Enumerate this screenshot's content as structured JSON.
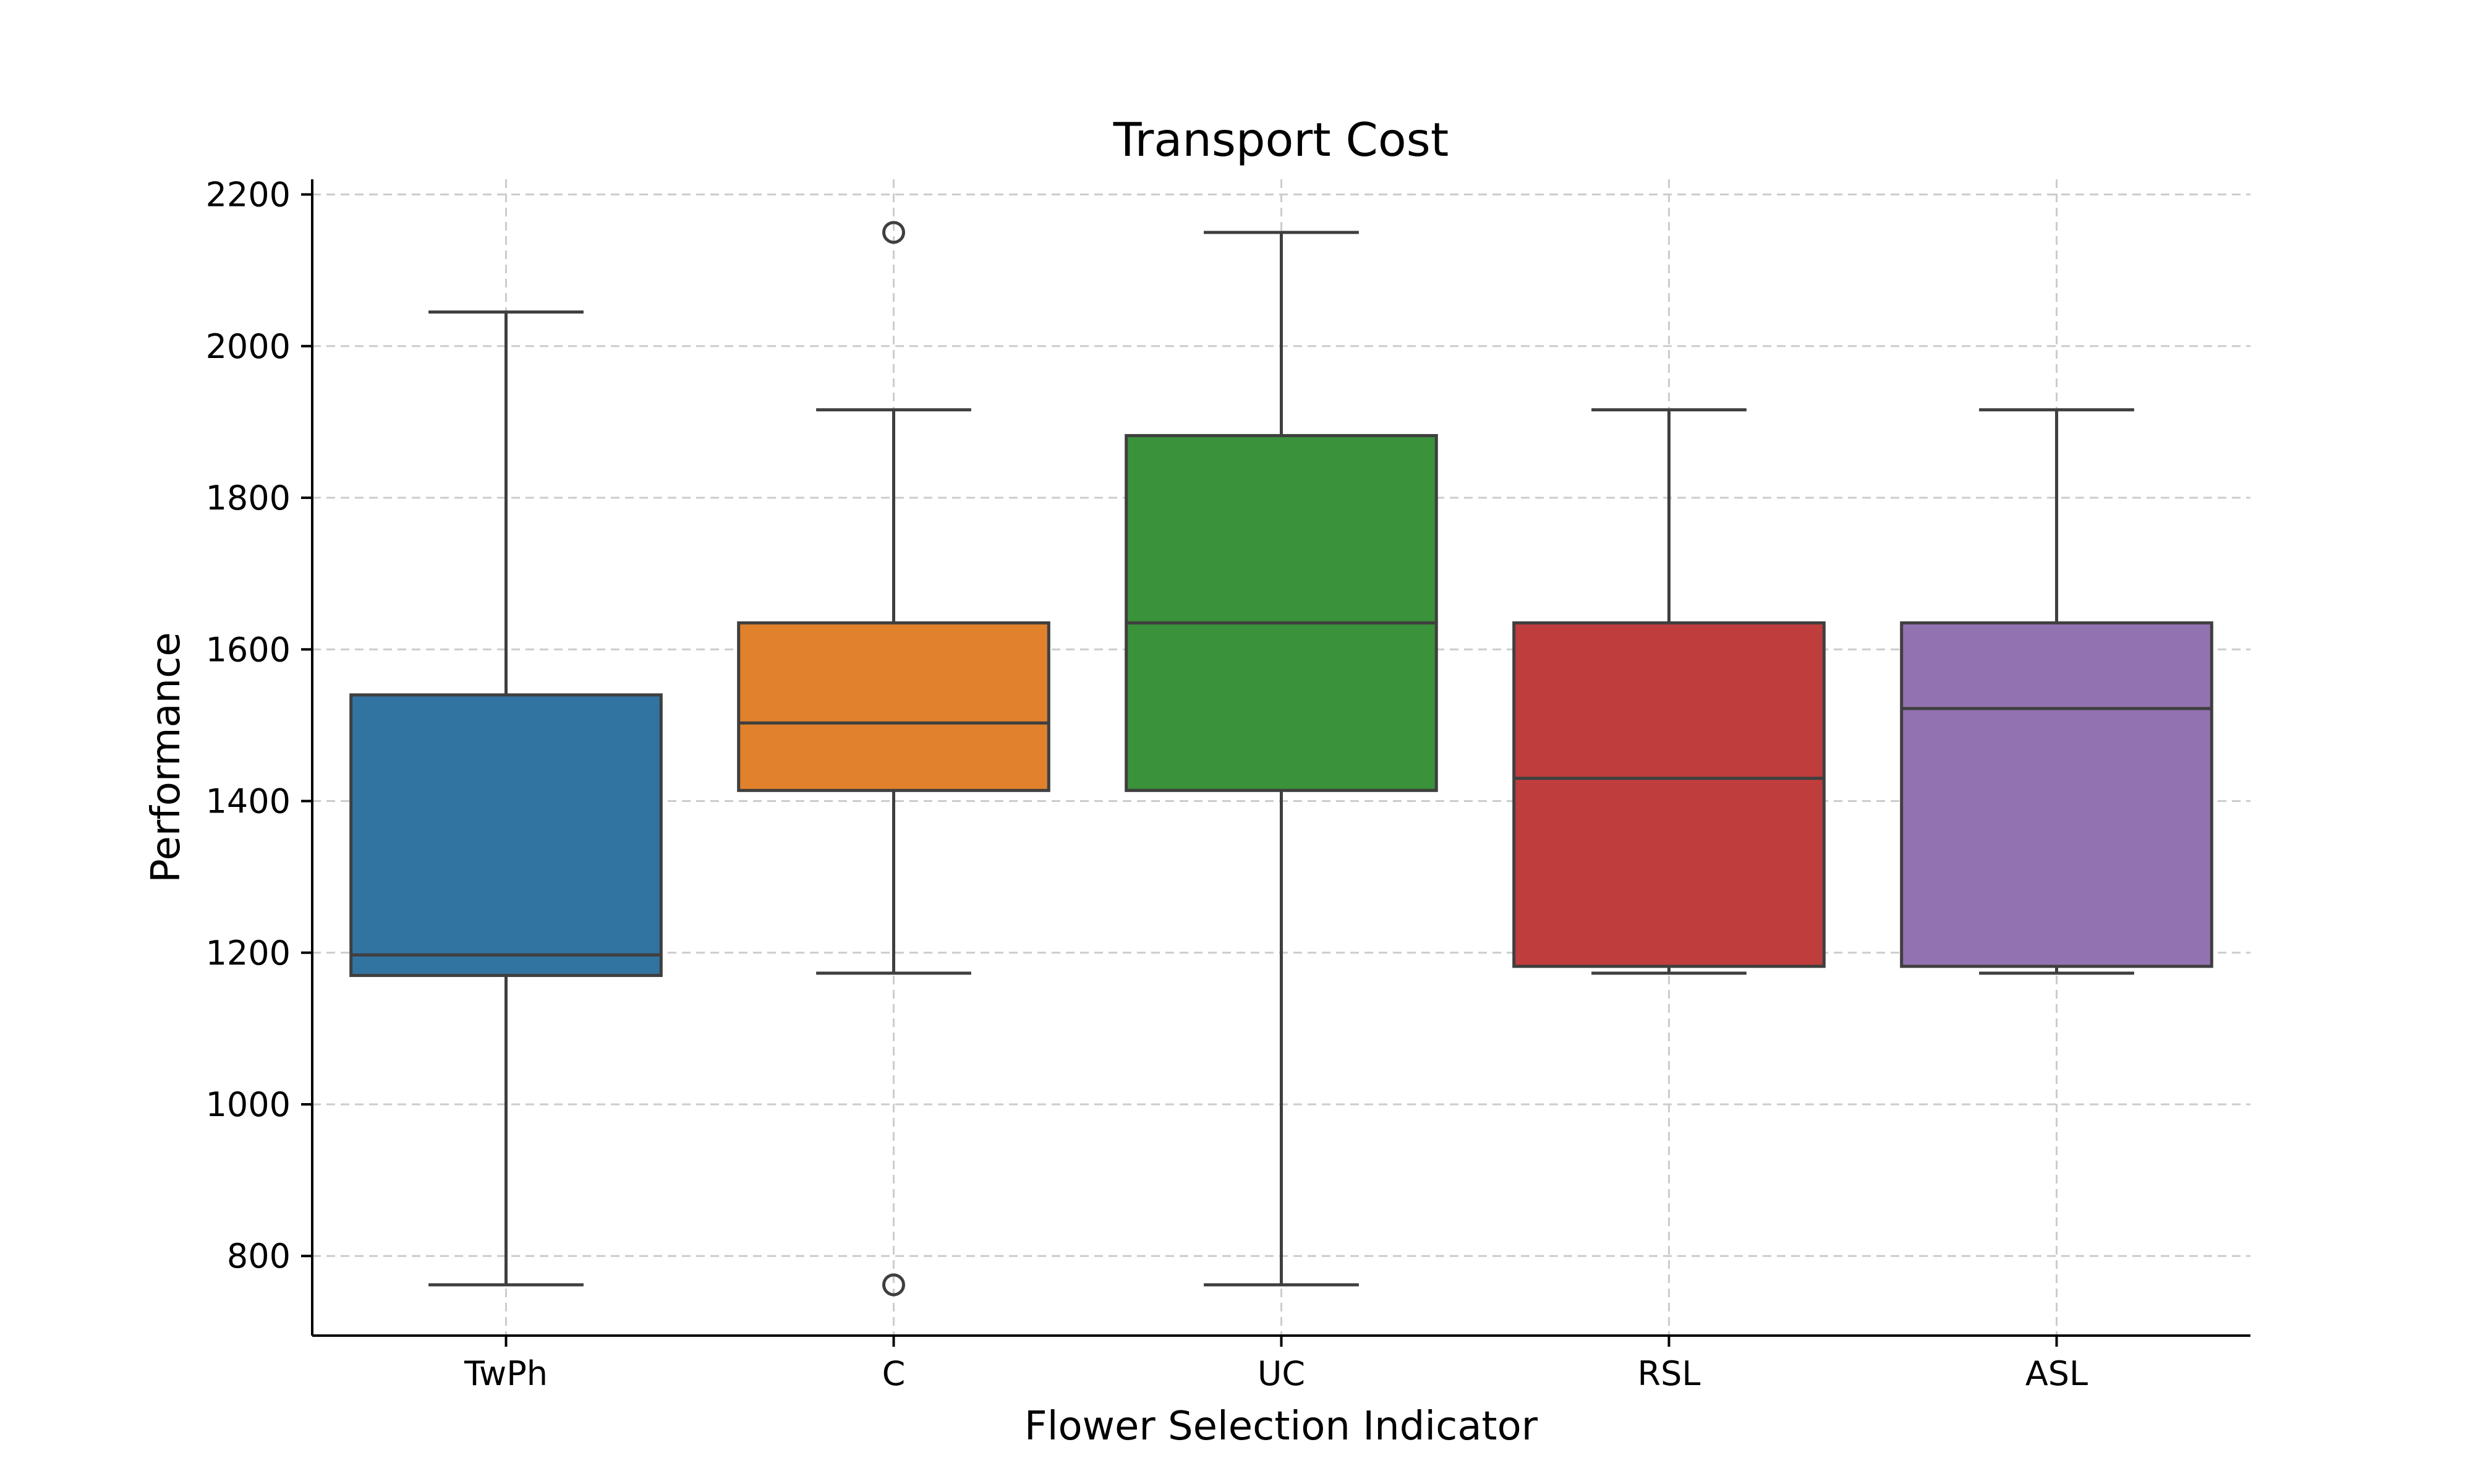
{
  "chart_data": {
    "type": "box",
    "title": "Transport Cost",
    "xlabel": "Flower Selection Indicator",
    "ylabel": "Performance",
    "ylim": [
      695,
      2220
    ],
    "yticks": [
      800,
      1000,
      1200,
      1400,
      1600,
      1800,
      2000,
      2200
    ],
    "grid": true,
    "categories": [
      "TwPh",
      "C",
      "UC",
      "RSL",
      "ASL"
    ],
    "boxes": [
      {
        "category": "TwPh",
        "whisker_low": 762,
        "q1": 1170,
        "median": 1197,
        "q3": 1540,
        "whisker_high": 2045,
        "outliers": [],
        "color": "#3274a1"
      },
      {
        "category": "C",
        "whisker_low": 1173,
        "q1": 1414,
        "median": 1503,
        "q3": 1635,
        "whisker_high": 1916,
        "outliers": [
          2150,
          762
        ],
        "color": "#e1812c"
      },
      {
        "category": "UC",
        "whisker_low": 762,
        "q1": 1414,
        "median": 1635,
        "q3": 1882,
        "whisker_high": 2150,
        "outliers": [],
        "color": "#3a923a"
      },
      {
        "category": "RSL",
        "whisker_low": 1173,
        "q1": 1182,
        "median": 1430,
        "q3": 1635,
        "whisker_high": 1916,
        "outliers": [],
        "color": "#c03d3e"
      },
      {
        "category": "ASL",
        "whisker_low": 1173,
        "q1": 1182,
        "median": 1522,
        "q3": 1635,
        "whisker_high": 1916,
        "outliers": [],
        "color": "#9372b2"
      }
    ]
  }
}
